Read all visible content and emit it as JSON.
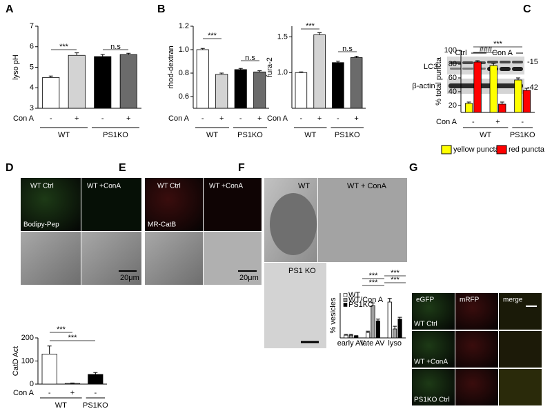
{
  "panel_labels": [
    "A",
    "B",
    "C",
    "D",
    "E",
    "F",
    "G"
  ],
  "blot": {
    "groups": [
      "Ctrl",
      "Con A"
    ],
    "rows": [
      "LC3",
      "β-actin"
    ],
    "markers": [
      "-15",
      "-42"
    ]
  },
  "images": {
    "D": {
      "columns": [
        "WT Ctrl",
        "WT +ConA"
      ],
      "stain": "Bodipy-Pep",
      "scale": "20μm"
    },
    "E": {
      "columns": [
        "WT Ctrl",
        "WT +ConA"
      ],
      "stain": "MR-CatB",
      "scale": "20μm"
    },
    "F": {
      "labels": [
        "WT",
        "WT + ConA",
        "PS1 KO"
      ]
    },
    "G": {
      "columns": [
        "eGFP",
        "mRFP",
        "merge"
      ],
      "rows": [
        "WT Ctrl",
        "WT +ConA",
        "PS1KO Ctrl"
      ]
    }
  },
  "chart_data": [
    {
      "type": "bar",
      "ylabel": "lyso pH",
      "ylim": [
        3,
        7
      ],
      "yticks": [
        3,
        4,
        5,
        6,
        7
      ],
      "categories": [
        "-",
        "+",
        "-",
        "+"
      ],
      "values": [
        4.5,
        5.58,
        5.52,
        5.62
      ],
      "errors": [
        0.07,
        0.12,
        0.1,
        0.06
      ],
      "colors": [
        "#ffffff",
        "#d3d3d3",
        "#000000",
        "#6b6b6b"
      ],
      "condition_label": "Con A",
      "groups": [
        "WT",
        "PS1KO"
      ],
      "annotations": [
        "***",
        "n.s"
      ]
    },
    {
      "type": "bar",
      "ylabel": "rhod-dextran",
      "ylim": [
        0.5,
        1.2
      ],
      "yticks": [
        0.6,
        0.8,
        {
          "value": 1,
          "label": "1.0"
        },
        1.2
      ],
      "categories": [
        "-",
        "+",
        "-",
        "+"
      ],
      "values": [
        1.0,
        0.79,
        0.83,
        0.81
      ],
      "errors": [
        0.01,
        0.01,
        0.01,
        0.01
      ],
      "colors": [
        "#ffffff",
        "#d3d3d3",
        "#000000",
        "#6b6b6b"
      ],
      "condition_label": "Con A",
      "groups": [
        "WT",
        "PS1KO"
      ],
      "annotations": [
        "***",
        "n.s"
      ]
    },
    {
      "type": "bar",
      "ylabel": "fura-2",
      "ylim": [
        0.5,
        1.65
      ],
      "yticks": [
        {
          "value": 1,
          "label": "1.0"
        },
        1.5
      ],
      "categories": [
        "-",
        "+",
        "-",
        "+"
      ],
      "values": [
        1.0,
        1.53,
        1.14,
        1.21
      ],
      "errors": [
        0.01,
        0.03,
        0.02,
        0.02
      ],
      "colors": [
        "#ffffff",
        "#d3d3d3",
        "#000000",
        "#6b6b6b"
      ],
      "condition_label": "Con A",
      "groups": [
        "WT",
        "PS1KO"
      ],
      "annotations": [
        "***",
        "n.s"
      ]
    },
    {
      "type": "bar",
      "ylabel": "CatD Act",
      "ylim": [
        0,
        200
      ],
      "yticks": [
        0,
        100,
        200
      ],
      "categories": [
        "-",
        "+",
        "-"
      ],
      "values": [
        130,
        3,
        42
      ],
      "errors": [
        35,
        2,
        8
      ],
      "colors": [
        "#ffffff",
        "#d3d3d3",
        "#000000"
      ],
      "condition_label": "Con A",
      "groups": [
        "WT",
        "PS1KO"
      ],
      "annotations": [
        "***",
        "***"
      ]
    },
    {
      "type": "bar",
      "ylabel": "% vesicles",
      "ylim": [
        0,
        100
      ],
      "categories": [
        "early AV",
        "late AV",
        "lyso"
      ],
      "series": [
        {
          "name": "WT",
          "color": "#ffffff",
          "values": [
            6,
            12,
            80
          ],
          "errors": [
            2,
            3,
            8
          ]
        },
        {
          "name": "WT/Con A",
          "color": "#a0a0a0",
          "values": [
            6,
            72,
            20
          ],
          "errors": [
            2,
            6,
            6
          ]
        },
        {
          "name": "PS1KO",
          "color": "#000000",
          "values": [
            4,
            38,
            42
          ],
          "errors": [
            1,
            4,
            4
          ]
        }
      ],
      "annotations": [
        "***",
        "***",
        "***",
        "***"
      ]
    },
    {
      "type": "bar",
      "ylabel": "% total puncta",
      "ylim": [
        10,
        100
      ],
      "yticks": [
        20,
        40,
        60,
        80,
        100
      ],
      "categories": [
        "-",
        "+",
        "-"
      ],
      "series": [
        {
          "name": "yellow puncta",
          "color": "#ffff00",
          "values": [
            23,
            78,
            57
          ],
          "errors": [
            2,
            3,
            3
          ]
        },
        {
          "name": "red puncta",
          "color": "#ff0000",
          "values": [
            83,
            22,
            42
          ],
          "errors": [
            2,
            3,
            3
          ]
        }
      ],
      "condition_label": "Con A",
      "groups": [
        "WT",
        "PS1KO"
      ],
      "annotations": [
        "***",
        "###"
      ]
    }
  ]
}
